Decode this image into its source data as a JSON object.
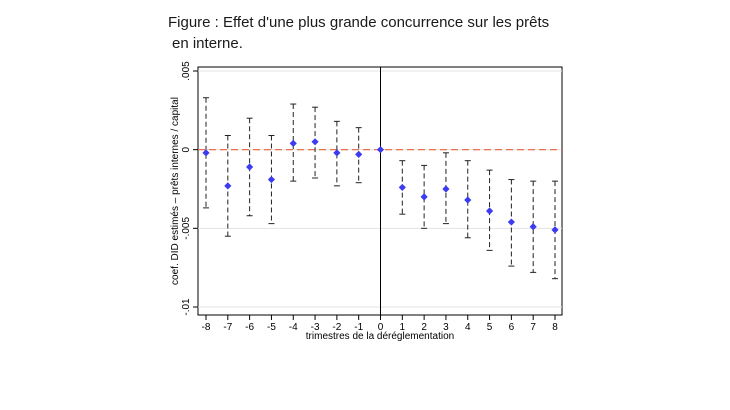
{
  "title": {
    "line1": "Figure : Effet d'une plus grande concurrence sur les prêts",
    "line2": "en interne."
  },
  "chart_data": {
    "type": "scatter",
    "xlabel": "trimestres de la déréglementation",
    "ylabel": "coef. DID estimés – prêts internes / capital",
    "xlim": [
      -8,
      8
    ],
    "ylim": [
      -0.01,
      0.005
    ],
    "x_ticks": [
      "-8",
      "-7",
      "-6",
      "-5",
      "-4",
      "-3",
      "-2",
      "-1",
      "0",
      "1",
      "2",
      "3",
      "4",
      "5",
      "6",
      "7",
      "8"
    ],
    "y_ticks": [
      {
        "value": 0.005,
        "label": ".005"
      },
      {
        "value": 0,
        "label": "0"
      },
      {
        "value": -0.005,
        "label": "-.005"
      },
      {
        "value": -0.01,
        "label": "-.01"
      }
    ],
    "grid": true,
    "reference_line": {
      "y": 0,
      "color": "#e8603c",
      "style": "dashed"
    },
    "vertical_line": {
      "x": 0,
      "color": "#000000"
    },
    "marker_color": "#3b3bf0",
    "points": [
      {
        "x": -8,
        "y": -0.0002,
        "lo": -0.0037,
        "hi": 0.0033
      },
      {
        "x": -7,
        "y": -0.0023,
        "lo": -0.0055,
        "hi": 0.0009
      },
      {
        "x": -6,
        "y": -0.0011,
        "lo": -0.0042,
        "hi": 0.002
      },
      {
        "x": -5,
        "y": -0.0019,
        "lo": -0.0047,
        "hi": 0.0009
      },
      {
        "x": -4,
        "y": 0.0004,
        "lo": -0.002,
        "hi": 0.0029
      },
      {
        "x": -3,
        "y": 0.0005,
        "lo": -0.0018,
        "hi": 0.0027
      },
      {
        "x": -2,
        "y": -0.0002,
        "lo": -0.0023,
        "hi": 0.0018
      },
      {
        "x": -1,
        "y": -0.0003,
        "lo": -0.0021,
        "hi": 0.0014
      },
      {
        "x": 0,
        "y": 0.0,
        "lo": 0.0,
        "hi": 0.0
      },
      {
        "x": 1,
        "y": -0.0024,
        "lo": -0.0041,
        "hi": -0.0007
      },
      {
        "x": 2,
        "y": -0.003,
        "lo": -0.005,
        "hi": -0.001
      },
      {
        "x": 3,
        "y": -0.0025,
        "lo": -0.0047,
        "hi": -0.0002
      },
      {
        "x": 4,
        "y": -0.0032,
        "lo": -0.0056,
        "hi": -0.0007
      },
      {
        "x": 5,
        "y": -0.0039,
        "lo": -0.0064,
        "hi": -0.0013
      },
      {
        "x": 6,
        "y": -0.0046,
        "lo": -0.0074,
        "hi": -0.0019
      },
      {
        "x": 7,
        "y": -0.0049,
        "lo": -0.0078,
        "hi": -0.002
      },
      {
        "x": 8,
        "y": -0.0051,
        "lo": -0.0082,
        "hi": -0.002
      }
    ]
  }
}
